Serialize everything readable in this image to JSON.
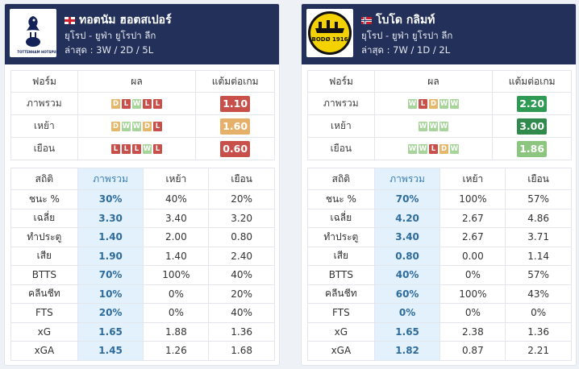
{
  "teams": [
    {
      "name": "ทอตนัม ฮอตสเปอร์",
      "flag": "england-flag",
      "competition": "ยุโรป - ยูฟ่า ยูโรปา ลีก",
      "recent": "ล่าสุด : 3W / 2D / 5L",
      "logo_text": "TOTTENHAM HOTSPUR",
      "form_headers": [
        "ฟอร์ม",
        "ผล",
        "แต้มต่อเกม"
      ],
      "form_rows": [
        {
          "label": "ภาพรวม",
          "results": [
            "D",
            "L",
            "W",
            "L",
            "L"
          ],
          "ppg": "1.10",
          "ppg_color": "#c8504a"
        },
        {
          "label": "เหย้า",
          "results": [
            "D",
            "W",
            "W",
            "D",
            "L"
          ],
          "ppg": "1.60",
          "ppg_color": "#e5b06a"
        },
        {
          "label": "เยือน",
          "results": [
            "L",
            "L",
            "L",
            "W",
            "L"
          ],
          "ppg": "0.60",
          "ppg_color": "#c8504a"
        }
      ],
      "stats_headers": [
        "สถิติ",
        "ภาพรวม",
        "เหย้า",
        "เยือน"
      ],
      "stats_rows": [
        {
          "label": "ชนะ %",
          "overall": "30%",
          "home": "40%",
          "away": "20%"
        },
        {
          "label": "เฉลี่ย",
          "overall": "3.30",
          "home": "3.40",
          "away": "3.20"
        },
        {
          "label": "ทำประตู",
          "overall": "1.40",
          "home": "2.00",
          "away": "0.80"
        },
        {
          "label": "เสีย",
          "overall": "1.90",
          "home": "1.40",
          "away": "2.40"
        },
        {
          "label": "BTTS",
          "overall": "70%",
          "home": "100%",
          "away": "40%"
        },
        {
          "label": "คลีนชีท",
          "overall": "10%",
          "home": "0%",
          "away": "20%"
        },
        {
          "label": "FTS",
          "overall": "20%",
          "home": "0%",
          "away": "40%"
        },
        {
          "label": "xG",
          "overall": "1.65",
          "home": "1.88",
          "away": "1.36"
        },
        {
          "label": "xGA",
          "overall": "1.45",
          "home": "1.26",
          "away": "1.68"
        }
      ]
    },
    {
      "name": "โบโด กลิมท์",
      "flag": "norway-flag",
      "competition": "ยุโรป - ยูฟ่า ยูโรปา ลีก",
      "recent": "ล่าสุด : 7W / 1D / 2L",
      "logo_text": "BODØ 1916",
      "form_headers": [
        "ฟอร์ม",
        "ผล",
        "แต้มต่อเกม"
      ],
      "form_rows": [
        {
          "label": "ภาพรวม",
          "results": [
            "W",
            "L",
            "D",
            "W",
            "W"
          ],
          "ppg": "2.20",
          "ppg_color": "#2f9a54"
        },
        {
          "label": "เหย้า",
          "results": [
            "W",
            "W",
            "W"
          ],
          "ppg": "3.00",
          "ppg_color": "#2f8a4c"
        },
        {
          "label": "เยือน",
          "results": [
            "W",
            "W",
            "L",
            "D",
            "W"
          ],
          "ppg": "1.86",
          "ppg_color": "#8cc67e"
        }
      ],
      "stats_headers": [
        "สถิติ",
        "ภาพรวม",
        "เหย้า",
        "เยือน"
      ],
      "stats_rows": [
        {
          "label": "ชนะ %",
          "overall": "70%",
          "home": "100%",
          "away": "57%"
        },
        {
          "label": "เฉลี่ย",
          "overall": "4.20",
          "home": "2.67",
          "away": "4.86"
        },
        {
          "label": "ทำประตู",
          "overall": "3.40",
          "home": "2.67",
          "away": "3.71"
        },
        {
          "label": "เสีย",
          "overall": "0.80",
          "home": "0.00",
          "away": "1.14"
        },
        {
          "label": "BTTS",
          "overall": "40%",
          "home": "0%",
          "away": "57%"
        },
        {
          "label": "คลีนชีท",
          "overall": "60%",
          "home": "100%",
          "away": "43%"
        },
        {
          "label": "FTS",
          "overall": "0%",
          "home": "0%",
          "away": "0%"
        },
        {
          "label": "xG",
          "overall": "1.65",
          "home": "2.38",
          "away": "1.36"
        },
        {
          "label": "xGA",
          "overall": "1.82",
          "home": "0.87",
          "away": "2.21"
        }
      ]
    }
  ]
}
